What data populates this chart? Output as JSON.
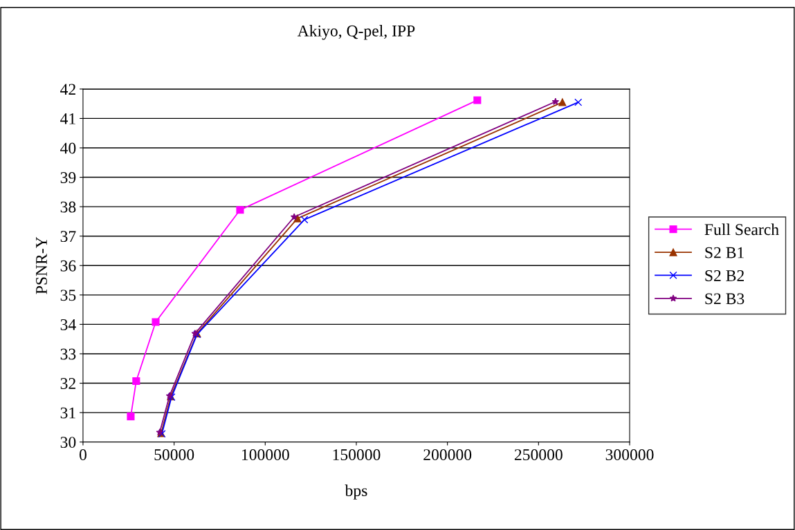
{
  "chart_data": {
    "type": "line",
    "title": "Akiyo, Q-pel, IPP",
    "xlabel": "bps",
    "ylabel": "PSNR-Y",
    "xlim": [
      0,
      300000
    ],
    "xticks": [
      0,
      50000,
      100000,
      150000,
      200000,
      250000,
      300000
    ],
    "ylim": [
      30,
      42
    ],
    "yticks": [
      30,
      31,
      32,
      33,
      34,
      35,
      36,
      37,
      38,
      39,
      40,
      41,
      42
    ],
    "grid": "y",
    "legend": "right",
    "line_style": "solid",
    "series": [
      {
        "name": "Full Search",
        "color": "#ff00ff",
        "marker": "square",
        "x": [
          26200,
          29200,
          39900,
          86200,
          216400
        ],
        "values": [
          30.87,
          32.07,
          34.08,
          37.89,
          41.62
        ]
      },
      {
        "name": "S2 B1",
        "color": "#993300",
        "marker": "triangle",
        "x": [
          42900,
          48200,
          62600,
          117700,
          263100
        ],
        "values": [
          30.3,
          31.55,
          33.69,
          37.6,
          41.55
        ]
      },
      {
        "name": "S2 B2",
        "color": "#0000ff",
        "marker": "cross",
        "x": [
          43300,
          48600,
          62600,
          121500,
          271800
        ],
        "values": [
          30.28,
          31.53,
          33.66,
          37.56,
          41.55
        ]
      },
      {
        "name": "S2 B3",
        "color": "#800080",
        "marker": "star",
        "x": [
          42100,
          47500,
          61500,
          115900,
          259300
        ],
        "values": [
          30.33,
          31.57,
          33.69,
          37.65,
          41.57
        ]
      }
    ]
  }
}
